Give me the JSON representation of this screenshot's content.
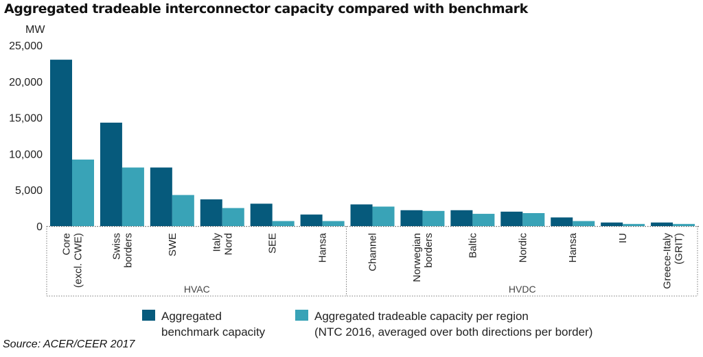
{
  "chart_data": {
    "type": "bar",
    "title": "Aggregated tradeable interconnector capacity compared with benchmark",
    "ylabel": "MW",
    "ylim": [
      0,
      25000
    ],
    "yticks": [
      0,
      5000,
      10000,
      15000,
      20000,
      25000
    ],
    "ytick_labels": [
      "0",
      "5,000",
      "10,000",
      "15,000",
      "20,000",
      "25,000"
    ],
    "categories": [
      [
        "Core",
        "(excl. CWE)"
      ],
      [
        "Swiss",
        "borders"
      ],
      [
        "SWE"
      ],
      [
        "Italy",
        "Nord"
      ],
      [
        "SEE"
      ],
      [
        "Hansa"
      ],
      [
        "Channel"
      ],
      [
        "Norwegian",
        "borders"
      ],
      [
        "Baltic"
      ],
      [
        "Nordic"
      ],
      [
        "Hansa"
      ],
      [
        "IU"
      ],
      [
        "Greece-Italy",
        "(GRIT)"
      ]
    ],
    "groups": [
      {
        "label": "HVAC",
        "start": 0,
        "end": 5
      },
      {
        "label": "HVDC",
        "start": 6,
        "end": 12
      }
    ],
    "series": [
      {
        "name": "Aggregated benchmark capacity",
        "legend_lines": [
          "Aggregated",
          "benchmark capacity"
        ],
        "color": "#065a7c",
        "values": [
          23000,
          14300,
          8100,
          3700,
          3100,
          1600,
          3000,
          2200,
          2200,
          2000,
          1200,
          500,
          500
        ]
      },
      {
        "name": "Aggregated tradeable capacity per region (NTC 2016, averaged over both directions per border)",
        "legend_lines": [
          "Aggregated tradeable capacity per region",
          "(NTC 2016, averaged over both directions per border)"
        ],
        "color": "#39a3b7",
        "values": [
          9200,
          8100,
          4300,
          2500,
          700,
          700,
          2700,
          2100,
          1700,
          1800,
          700,
          300,
          300
        ]
      }
    ],
    "grid": false,
    "legend_position": "bottom"
  },
  "source": "Source: ACER/CEER 2017"
}
